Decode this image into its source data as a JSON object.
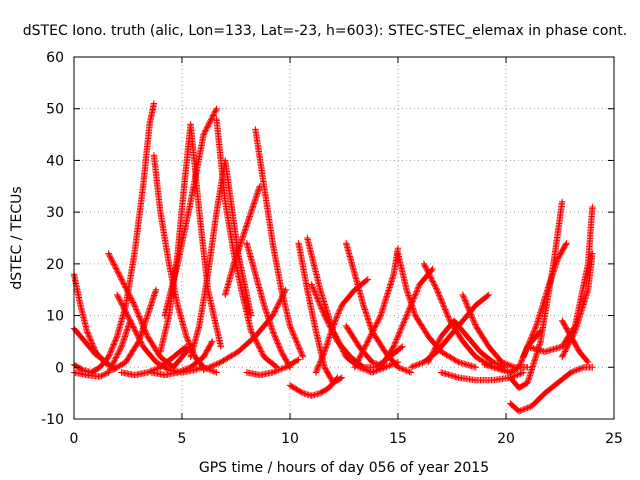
{
  "chart_data": {
    "type": "scatter",
    "title": "dSTEC Iono. truth (alic, Lon=133, Lat=-23, h=603): STEC-STEC_elemax in phase cont.",
    "xlabel": "GPS time / hours of day 056 of year 2015",
    "ylabel": "dSTEC  / TECUs",
    "xlim": [
      0,
      25
    ],
    "ylim": [
      -10,
      60
    ],
    "xticks": [
      "0",
      "5",
      "10",
      "15",
      "20",
      "25"
    ],
    "yticks": [
      "-10",
      "0",
      "10",
      "20",
      "30",
      "40",
      "50",
      "60"
    ],
    "grid": true,
    "marker": "+",
    "color": "#ff0000",
    "series": [
      {
        "x": [
          0.0,
          0.4,
          0.8,
          1.2,
          1.6,
          2.0,
          2.4,
          2.8,
          3.2,
          3.5,
          3.7
        ],
        "y": [
          0.5,
          -0.5,
          -1.0,
          0.0,
          2.0,
          6.0,
          12.0,
          22.0,
          35.0,
          47.0,
          51.0
        ]
      },
      {
        "x": [
          0.0,
          0.3,
          0.6,
          1.0,
          1.4,
          1.8
        ],
        "y": [
          18.0,
          12.0,
          7.0,
          3.0,
          1.0,
          0.0
        ]
      },
      {
        "x": [
          0.0,
          0.5,
          1.0,
          1.5
        ],
        "y": [
          7.5,
          5.0,
          2.5,
          1.0
        ]
      },
      {
        "x": [
          0.0,
          0.6,
          1.2,
          1.6,
          2.2,
          2.6
        ],
        "y": [
          -1.0,
          -1.5,
          -1.8,
          -1.0,
          4.0,
          9.0
        ]
      },
      {
        "x": [
          1.6,
          2.2,
          2.8,
          3.4,
          4.0,
          4.6,
          5.0,
          5.4
        ],
        "y": [
          22.0,
          17.0,
          12.0,
          6.0,
          2.0,
          0.0,
          2.0,
          4.0
        ]
      },
      {
        "x": [
          1.8,
          2.4,
          3.0,
          3.4,
          3.8
        ],
        "y": [
          -0.5,
          1.0,
          5.0,
          10.0,
          15.0
        ]
      },
      {
        "x": [
          2.0,
          2.6,
          3.2,
          3.8,
          4.4,
          5.0,
          5.6,
          6.0
        ],
        "y": [
          14.0,
          9.0,
          4.0,
          1.0,
          -0.5,
          -1.0,
          -0.5,
          0.0
        ]
      },
      {
        "x": [
          2.2,
          2.8,
          3.4,
          4.0,
          4.6,
          5.2
        ],
        "y": [
          -1.0,
          -1.5,
          -1.0,
          0.0,
          2.0,
          4.0
        ]
      },
      {
        "x": [
          3.7,
          4.0,
          4.4,
          4.8,
          5.2,
          5.6,
          6.0,
          6.6
        ],
        "y": [
          41.0,
          30.0,
          20.0,
          12.0,
          6.0,
          2.0,
          0.0,
          -1.0
        ]
      },
      {
        "x": [
          4.0,
          4.4,
          4.8,
          5.1,
          5.4,
          5.8,
          6.2,
          6.8
        ],
        "y": [
          3.0,
          10.0,
          22.0,
          35.0,
          47.0,
          30.0,
          15.0,
          4.0
        ]
      },
      {
        "x": [
          3.6,
          4.2,
          4.8,
          5.4,
          6.0,
          6.4
        ],
        "y": [
          -1.0,
          -1.5,
          -1.0,
          0.0,
          2.0,
          5.0
        ]
      },
      {
        "x": [
          4.2,
          4.8,
          5.4,
          6.0,
          6.6
        ],
        "y": [
          10.0,
          20.0,
          32.0,
          45.0,
          50.0
        ]
      },
      {
        "x": [
          5.4,
          5.8,
          6.2,
          6.6,
          7.0,
          7.6,
          8.2
        ],
        "y": [
          2.0,
          8.0,
          18.0,
          30.0,
          40.0,
          22.0,
          10.0
        ]
      },
      {
        "x": [
          6.6,
          7.0,
          7.4,
          7.8,
          8.2,
          8.8,
          9.4
        ],
        "y": [
          48.0,
          32.0,
          22.0,
          14.0,
          7.0,
          2.0,
          0.0
        ]
      },
      {
        "x": [
          7.0,
          7.4,
          7.8,
          8.2,
          8.6
        ],
        "y": [
          14.0,
          20.0,
          25.0,
          30.0,
          35.0
        ]
      },
      {
        "x": [
          8.0,
          8.4,
          8.8,
          9.2,
          9.6,
          10.0
        ],
        "y": [
          24.0,
          18.0,
          12.0,
          7.0,
          3.0,
          0.0
        ]
      },
      {
        "x": [
          8.4,
          8.8,
          9.2,
          9.6,
          10.0,
          10.6
        ],
        "y": [
          46.0,
          35.0,
          24.0,
          15.0,
          8.0,
          2.0
        ]
      },
      {
        "x": [
          6.0,
          6.8,
          7.6,
          8.4,
          9.2,
          9.8
        ],
        "y": [
          -0.5,
          1.0,
          3.0,
          6.0,
          10.0,
          15.0
        ]
      },
      {
        "x": [
          8.0,
          8.6,
          9.2,
          9.8,
          10.4
        ],
        "y": [
          -1.0,
          -1.5,
          -1.0,
          0.0,
          1.5
        ]
      },
      {
        "x": [
          10.4,
          10.8,
          11.2,
          11.6,
          12.0,
          12.4
        ],
        "y": [
          24.0,
          15.0,
          7.0,
          0.0,
          -3.0,
          -2.0
        ]
      },
      {
        "x": [
          10.0,
          10.6,
          11.0,
          11.4,
          11.8,
          12.2
        ],
        "y": [
          -3.5,
          -5.0,
          -5.5,
          -5.0,
          -4.0,
          -2.0
        ]
      },
      {
        "x": [
          10.8,
          11.4,
          12.0,
          12.6,
          13.2,
          13.8,
          14.4
        ],
        "y": [
          25.0,
          15.0,
          7.0,
          2.0,
          0.0,
          -1.0,
          0.0
        ]
      },
      {
        "x": [
          11.0,
          11.6,
          12.2,
          12.8,
          13.4,
          14.0,
          14.6,
          15.2
        ],
        "y": [
          16.0,
          10.0,
          5.0,
          2.0,
          0.0,
          0.0,
          2.0,
          4.0
        ]
      },
      {
        "x": [
          11.2,
          11.6,
          12.0,
          12.4,
          13.0,
          13.6
        ],
        "y": [
          -1.0,
          3.0,
          8.0,
          12.0,
          15.0,
          17.0
        ]
      },
      {
        "x": [
          12.6,
          13.0,
          13.4,
          13.8,
          14.4,
          15.0,
          15.6
        ],
        "y": [
          24.0,
          18.0,
          12.0,
          7.0,
          3.0,
          0.0,
          -1.0
        ]
      },
      {
        "x": [
          12.6,
          13.2,
          13.8,
          14.4,
          15.0
        ],
        "y": [
          8.0,
          4.0,
          1.0,
          0.0,
          1.0
        ]
      },
      {
        "x": [
          13.0,
          13.6,
          14.2,
          14.8,
          15.0
        ],
        "y": [
          0.0,
          5.0,
          10.0,
          18.0,
          23.0
        ]
      },
      {
        "x": [
          15.0,
          15.4,
          15.8,
          16.4,
          17.0,
          17.8,
          18.6
        ],
        "y": [
          22.0,
          15.0,
          10.0,
          6.0,
          3.0,
          1.0,
          0.0
        ]
      },
      {
        "x": [
          14.2,
          14.8,
          15.4,
          16.0,
          16.6
        ],
        "y": [
          0.0,
          4.0,
          10.0,
          16.0,
          19.0
        ]
      },
      {
        "x": [
          15.6,
          16.2,
          16.8,
          17.4,
          18.0,
          18.6,
          19.2
        ],
        "y": [
          0.0,
          1.0,
          3.0,
          6.0,
          9.0,
          12.0,
          14.0
        ]
      },
      {
        "x": [
          16.2,
          16.8,
          17.4,
          18.0,
          18.6,
          19.4,
          20.2
        ],
        "y": [
          20.0,
          15.0,
          9.0,
          5.0,
          2.0,
          0.0,
          -1.0
        ]
      },
      {
        "x": [
          16.4,
          17.0,
          17.6,
          18.2,
          18.8,
          19.4,
          20.0
        ],
        "y": [
          1.0,
          6.0,
          9.0,
          6.0,
          3.0,
          1.0,
          0.0
        ]
      },
      {
        "x": [
          18.0,
          18.6,
          19.2,
          19.8,
          20.4,
          21.0
        ],
        "y": [
          14.0,
          8.0,
          4.0,
          1.0,
          0.0,
          0.0
        ]
      },
      {
        "x": [
          17.0,
          17.8,
          18.6,
          19.4,
          20.2,
          20.8
        ],
        "y": [
          -1.0,
          -2.0,
          -2.5,
          -2.5,
          -2.0,
          -1.0
        ]
      },
      {
        "x": [
          19.0,
          19.6,
          20.2,
          20.6,
          21.0,
          21.6
        ],
        "y": [
          0.5,
          0.0,
          -1.0,
          0.0,
          4.0,
          7.0
        ]
      },
      {
        "x": [
          20.2,
          20.6,
          21.0,
          21.6,
          22.2,
          22.6
        ],
        "y": [
          -2.0,
          -4.0,
          -3.0,
          5.0,
          20.0,
          32.0
        ]
      },
      {
        "x": [
          20.8,
          21.4,
          22.0,
          22.4,
          22.8
        ],
        "y": [
          2.0,
          8.0,
          16.0,
          21.0,
          24.0
        ]
      },
      {
        "x": [
          20.2,
          20.6,
          21.2,
          21.8,
          22.4,
          23.0,
          23.6,
          24.0
        ],
        "y": [
          -7.0,
          -8.5,
          -7.5,
          -5.0,
          -3.0,
          -1.0,
          0.0,
          0.0
        ]
      },
      {
        "x": [
          22.6,
          23.0,
          23.4,
          23.8
        ],
        "y": [
          9.0,
          6.0,
          3.0,
          1.0
        ]
      },
      {
        "x": [
          21.0,
          21.8,
          22.6,
          23.2,
          23.8,
          24.0
        ],
        "y": [
          4.0,
          3.0,
          4.0,
          8.0,
          20.0,
          31.0
        ]
      },
      {
        "x": [
          22.6,
          23.2,
          23.8,
          24.0
        ],
        "y": [
          2.0,
          7.0,
          15.0,
          22.0
        ]
      }
    ]
  }
}
